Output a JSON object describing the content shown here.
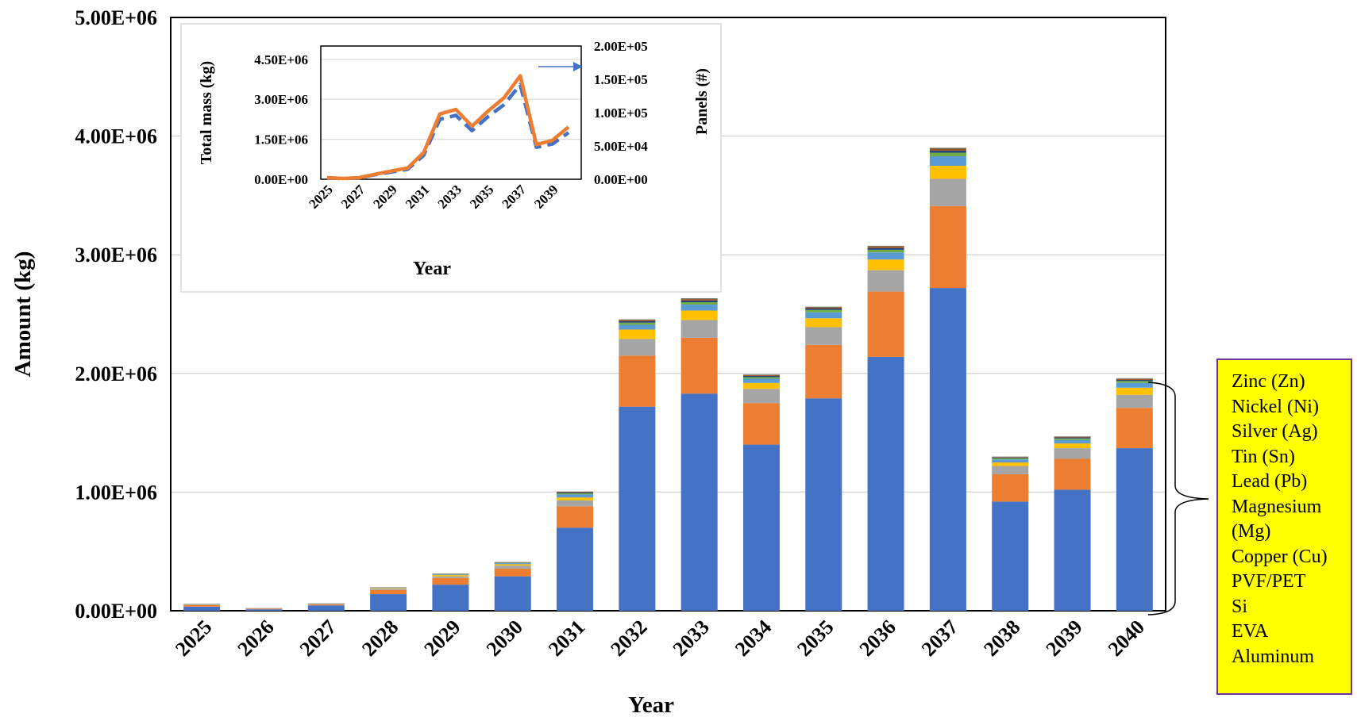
{
  "chart_data": [
    {
      "type": "bar",
      "stacked": true,
      "xlabel": "Year",
      "ylabel": "Amount (kg)",
      "ylim": [
        0,
        5000000
      ],
      "yticks": [
        "0.00E+00",
        "1.00E+06",
        "2.00E+06",
        "3.00E+06",
        "4.00E+06",
        "5.00E+06"
      ],
      "grid": true,
      "legend_placement": "right",
      "categories": [
        "2025",
        "2026",
        "2027",
        "2028",
        "2029",
        "2030",
        "2031",
        "2032",
        "2033",
        "2034",
        "2035",
        "2036",
        "2037",
        "2038",
        "2039",
        "2040"
      ],
      "series": [
        {
          "name": "Aluminum",
          "color": "#4472c4",
          "values": [
            35000,
            12000,
            45000,
            140000,
            220000,
            290000,
            700000,
            1720000,
            1830000,
            1400000,
            1790000,
            2140000,
            2720000,
            920000,
            1020000,
            1370000
          ]
        },
        {
          "name": "EVA",
          "color": "#ed7d31",
          "values": [
            12000,
            6000,
            8000,
            35000,
            55000,
            65000,
            180000,
            430000,
            470000,
            350000,
            450000,
            550000,
            690000,
            230000,
            260000,
            340000
          ]
        },
        {
          "name": "Si",
          "color": "#a5a5a5",
          "values": [
            5000,
            2000,
            4000,
            10000,
            15000,
            25000,
            50000,
            140000,
            150000,
            120000,
            150000,
            180000,
            230000,
            70000,
            90000,
            110000
          ]
        },
        {
          "name": "PVF/PET",
          "color": "#ffc000",
          "values": [
            3000,
            1000,
            2000,
            5000,
            10000,
            12000,
            25000,
            80000,
            80000,
            50000,
            75000,
            90000,
            110000,
            30000,
            40000,
            60000
          ]
        },
        {
          "name": "Copper (Cu)",
          "color": "#5b9bd5",
          "values": [
            2000,
            1000,
            2000,
            3000,
            5000,
            8000,
            25000,
            40000,
            50000,
            35000,
            50000,
            60000,
            80000,
            25000,
            30000,
            40000
          ]
        },
        {
          "name": "Magnesium (Mg)",
          "color": "#70ad47",
          "values": [
            1000,
            500,
            1000,
            2000,
            3000,
            4000,
            10000,
            18000,
            20000,
            14000,
            20000,
            22000,
            30000,
            10000,
            12000,
            16000
          ]
        },
        {
          "name": "Lead (Pb)",
          "color": "#264478",
          "values": [
            500,
            300,
            500,
            1000,
            2000,
            2500,
            6000,
            12000,
            15000,
            10000,
            12000,
            15000,
            18000,
            6000,
            8000,
            10000
          ]
        },
        {
          "name": "Tin (Sn)",
          "color": "#9e480e",
          "values": [
            500,
            300,
            500,
            1000,
            1500,
            2000,
            4000,
            8000,
            10000,
            6000,
            8000,
            10000,
            12000,
            4000,
            5000,
            7000
          ]
        },
        {
          "name": "Silver (Ag)",
          "color": "#636363",
          "values": [
            300,
            200,
            300,
            700,
            1000,
            1500,
            3000,
            5000,
            6000,
            4000,
            5000,
            6000,
            8000,
            3000,
            3000,
            4000
          ]
        },
        {
          "name": "Nickel (Ni)",
          "color": "#997300",
          "values": [
            200,
            100,
            200,
            300,
            500,
            500,
            1000,
            2000,
            2000,
            1000,
            2000,
            2000,
            3000,
            1000,
            1000,
            2000
          ]
        },
        {
          "name": "Zinc (Zn)",
          "color": "#255e91",
          "values": [
            100,
            100,
            100,
            200,
            200,
            300,
            500,
            1000,
            1000,
            800,
            1000,
            1000,
            1000,
            500,
            500,
            700
          ]
        }
      ]
    },
    {
      "type": "line",
      "xlabel": "Year",
      "ylabel": "Total mass (kg)",
      "y2label": "Panels (#)",
      "ylim": [
        0,
        5000000
      ],
      "y2lim": [
        0,
        200000
      ],
      "yticks": [
        "0.00E+00",
        "1.50E+06",
        "3.00E+06",
        "4.50E+06"
      ],
      "y2ticks": [
        "0.00E+00",
        "5.00E+04",
        "1.00E+05",
        "1.50E+05",
        "2.00E+05"
      ],
      "xticks": [
        "2025",
        "2027",
        "2029",
        "2031",
        "2033",
        "2035",
        "2037",
        "2039"
      ],
      "grid": true,
      "x": [
        2025,
        2026,
        2027,
        2028,
        2029,
        2030,
        2031,
        2032,
        2033,
        2034,
        2035,
        2036,
        2037,
        2038,
        2039,
        2040
      ],
      "series": [
        {
          "color": "#ed7d31",
          "axis": "left",
          "style": "solid",
          "values": [
            60000,
            30000,
            60000,
            190000,
            310000,
            420000,
            1000000,
            2450000,
            2620000,
            1990000,
            2560000,
            3060000,
            3880000,
            1300000,
            1460000,
            1960000
          ]
        },
        {
          "color": "#4472c4",
          "axis": "right",
          "style": "dashed",
          "values": [
            2000,
            1000,
            2000,
            7000,
            11000,
            15000,
            36000,
            90000,
            96000,
            73000,
            94000,
            112000,
            142000,
            48000,
            53000,
            70000
          ]
        }
      ]
    }
  ],
  "legend_items": [
    "Zinc (Zn)",
    "Nickel (Ni)",
    "Silver (Ag)",
    "Tin (Sn)",
    "Lead (Pb)",
    "Magnesium (Mg)",
    "Copper (Cu)",
    "PVF/PET",
    "Si",
    "EVA",
    "Aluminum"
  ]
}
